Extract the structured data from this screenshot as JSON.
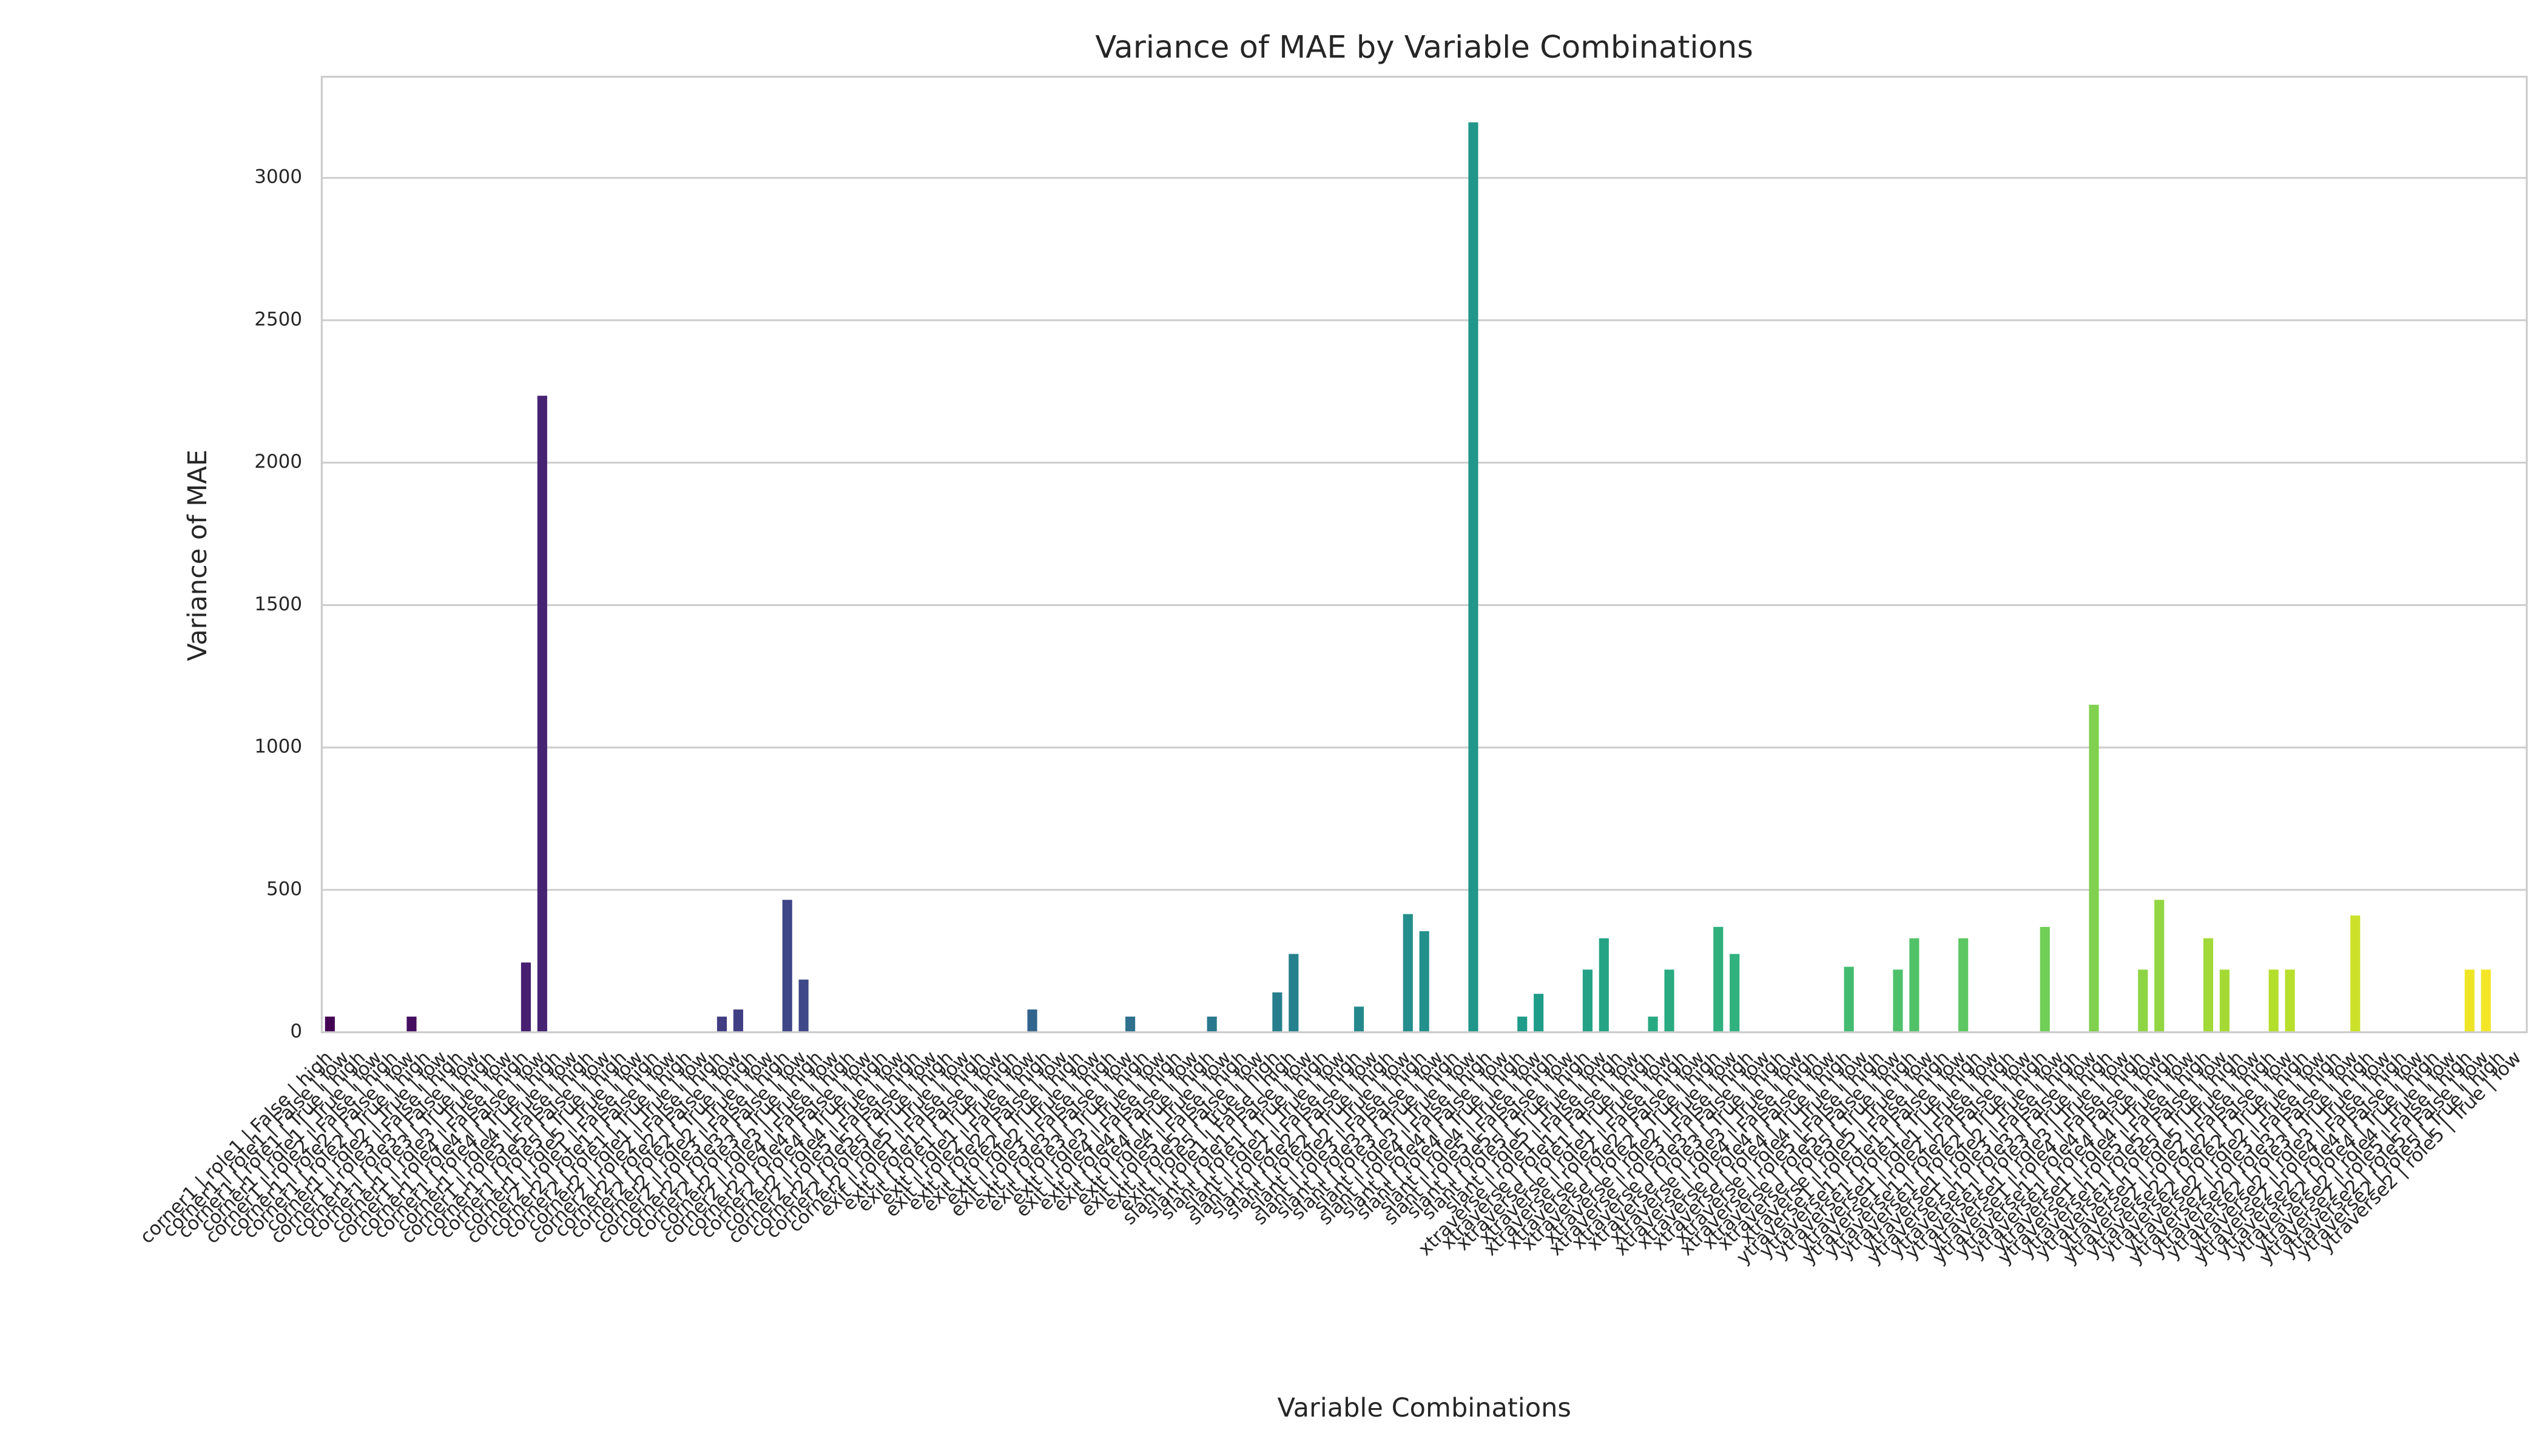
{
  "chart_data": {
    "type": "bar",
    "title": "Variance of MAE by Variable Combinations",
    "x_label": "Variable Combinations",
    "y_label": "Variance of MAE",
    "palette": "viridis",
    "grid": true,
    "ylim": [
      0,
      3355
    ],
    "yticks": [
      0,
      500,
      1000,
      1500,
      2000,
      2500,
      3000
    ],
    "categories": [
      "corner1 | role1 | False | high",
      "corner1 | role1 | False | low",
      "corner1 | role1 | True | high",
      "corner1 | role1 | True | low",
      "corner1 | role2 | False | high",
      "corner1 | role2 | False | low",
      "corner1 | role2 | True | high",
      "corner1 | role2 | True | low",
      "corner1 | role3 | False | high",
      "corner1 | role3 | False | low",
      "corner1 | role3 | True | high",
      "corner1 | role3 | True | low",
      "corner1 | role4 | False | high",
      "corner1 | role4 | False | low",
      "corner1 | role4 | True | high",
      "corner1 | role4 | True | low",
      "corner1 | role5 | False | high",
      "corner1 | role5 | False | low",
      "corner1 | role5 | True | high",
      "corner1 | role5 | True | low",
      "corner2 | role1 | False | high",
      "corner2 | role1 | False | low",
      "corner2 | role1 | True | high",
      "corner2 | role1 | True | low",
      "corner2 | role2 | False | high",
      "corner2 | role2 | False | low",
      "corner2 | role2 | True | high",
      "corner2 | role2 | True | low",
      "corner2 | role3 | False | high",
      "corner2 | role3 | False | low",
      "corner2 | role3 | True | high",
      "corner2 | role3 | True | low",
      "corner2 | role4 | False | high",
      "corner2 | role4 | False | low",
      "corner2 | role4 | True | high",
      "corner2 | role4 | True | low",
      "corner2 | role5 | False | high",
      "corner2 | role5 | False | low",
      "corner2 | role5 | True | high",
      "corner2 | role5 | True | low",
      "exit | role1 | False | high",
      "exit | role1 | False | low",
      "exit | role1 | True | high",
      "exit | role1 | True | low",
      "exit | role2 | False | high",
      "exit | role2 | False | low",
      "exit | role2 | True | high",
      "exit | role2 | True | low",
      "exit | role3 | False | high",
      "exit | role3 | False | low",
      "exit | role3 | True | high",
      "exit | role3 | True | low",
      "exit | role4 | False | high",
      "exit | role4 | False | low",
      "exit | role4 | True | high",
      "exit | role4 | True | low",
      "exit | role5 | False | high",
      "exit | role5 | False | low",
      "exit | role5 | True | high",
      "slant | role1 | False | high",
      "slant | role1 | False | low",
      "slant | role1 | True | high",
      "slant | role1 | True | low",
      "slant | role2 | False | high",
      "slant | role2 | False | low",
      "slant | role2 | True | high",
      "slant | role2 | True | low",
      "slant | role3 | False | high",
      "slant | role3 | False | low",
      "slant | role3 | True | high",
      "slant | role3 | True | low",
      "slant | role4 | False | high",
      "slant | role4 | False | low",
      "slant | role4 | True | high",
      "slant | role4 | True | low",
      "slant | role5 | False | high",
      "slant | role5 | False | low",
      "slant | role5 | True | high",
      "slant | role5 | True | low",
      "xtraverse | role1 | False | high",
      "xtraverse | role1 | False | low",
      "xtraverse | role1 | True | high",
      "xtraverse | role1 | True | low",
      "xtraverse | role2 | False | high",
      "xtraverse | role2 | False | low",
      "xtraverse | role2 | True | high",
      "xtraverse | role2 | True | low",
      "xtraverse | role3 | False | high",
      "xtraverse | role3 | False | low",
      "xtraverse | role3 | True | high",
      "xtraverse | role3 | True | low",
      "xtraverse | role4 | False | high",
      "xtraverse | role4 | False | low",
      "xtraverse | role4 | True | high",
      "xtraverse | role4 | True | low",
      "xtraverse | role5 | False | high",
      "xtraverse | role5 | False | low",
      "xtraverse | role5 | True | high",
      "xtraverse | role5 | True | low",
      "ytraverse1 | role1 | False | high",
      "ytraverse1 | role1 | False | low",
      "ytraverse1 | role1 | True | high",
      "ytraverse1 | role1 | True | low",
      "ytraverse1 | role2 | False | high",
      "ytraverse1 | role2 | False | low",
      "ytraverse1 | role2 | True | high",
      "ytraverse1 | role2 | True | low",
      "ytraverse1 | role3 | False | high",
      "ytraverse1 | role3 | False | low",
      "ytraverse1 | role3 | True | high",
      "ytraverse1 | role3 | True | low",
      "ytraverse1 | role4 | False | high",
      "ytraverse1 | role4 | False | low",
      "ytraverse1 | role4 | True | high",
      "ytraverse1 | role4 | True | low",
      "ytraverse1 | role5 | False | high",
      "ytraverse1 | role5 | False | low",
      "ytraverse1 | role5 | True | high",
      "ytraverse1 | role5 | True | low",
      "ytraverse2 | role2 | False | high",
      "ytraverse2 | role2 | False | low",
      "ytraverse2 | role2 | True | high",
      "ytraverse2 | role2 | True | low",
      "ytraverse2 | role3 | False | high",
      "ytraverse2 | role3 | False | low",
      "ytraverse2 | role3 | True | high",
      "ytraverse2 | role3 | True | low",
      "ytraverse2 | role4 | False | high",
      "ytraverse2 | role4 | False | low",
      "ytraverse2 | role4 | True | high",
      "ytraverse2 | role4 | True | low",
      "ytraverse2 | role5 | False | high",
      "ytraverse2 | role5 | False | low",
      "ytraverse2 | role5 | True | high",
      "ytraverse2 | role5 | True | low"
    ],
    "values": [
      55,
      0,
      0,
      0,
      0,
      55,
      0,
      0,
      0,
      0,
      0,
      0,
      245,
      2235,
      0,
      0,
      0,
      0,
      0,
      0,
      0,
      0,
      0,
      0,
      55,
      80,
      0,
      0,
      465,
      185,
      0,
      0,
      0,
      0,
      0,
      0,
      0,
      0,
      0,
      0,
      0,
      0,
      0,
      80,
      0,
      0,
      0,
      0,
      0,
      55,
      0,
      0,
      0,
      0,
      55,
      0,
      0,
      0,
      140,
      275,
      0,
      0,
      0,
      90,
      0,
      0,
      415,
      355,
      0,
      0,
      3195,
      0,
      0,
      55,
      135,
      0,
      0,
      220,
      330,
      0,
      0,
      55,
      220,
      0,
      0,
      370,
      275,
      0,
      0,
      0,
      0,
      0,
      0,
      230,
      0,
      0,
      220,
      330,
      0,
      0,
      330,
      0,
      0,
      0,
      0,
      370,
      0,
      0,
      1150,
      0,
      0,
      220,
      465,
      0,
      0,
      330,
      220,
      0,
      0,
      220,
      220,
      0,
      0,
      0,
      410,
      0,
      0,
      0,
      0,
      0,
      0,
      220,
      220,
      0,
      0
    ]
  }
}
